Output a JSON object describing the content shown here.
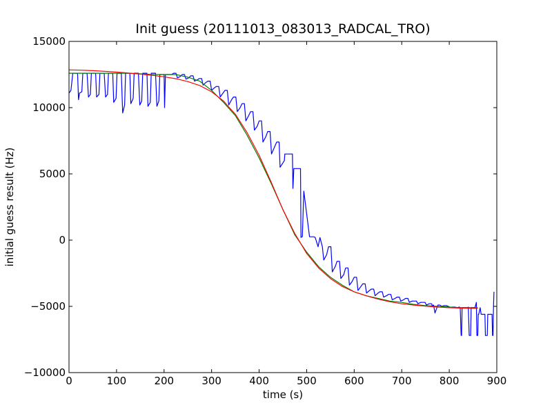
{
  "chart_data": {
    "type": "line",
    "title": "Init guess (20111013_083013_RADCAL_TRO)",
    "xlabel": "time (s)",
    "ylabel": "initial guess result (Hz)",
    "xlim": [
      0,
      900
    ],
    "ylim": [
      -10000,
      15000
    ],
    "xticks": [
      0,
      100,
      200,
      300,
      400,
      500,
      600,
      700,
      800,
      900
    ],
    "yticks": [
      -10000,
      -5000,
      0,
      5000,
      10000,
      15000
    ],
    "xtick_labels": [
      "0",
      "100",
      "200",
      "300",
      "400",
      "500",
      "600",
      "700",
      "800",
      "900"
    ],
    "ytick_labels": [
      "−10000",
      "−5000",
      "0",
      "5000",
      "10000",
      "15000"
    ],
    "grid": false,
    "legend": "none",
    "series": [
      {
        "color": "#0000ff",
        "x": [
          0,
          4,
          8,
          9,
          18,
          20,
          22,
          27,
          29,
          36,
          38,
          41,
          45,
          47,
          54,
          56,
          58,
          63,
          65,
          72,
          74,
          77,
          81,
          83,
          90,
          92,
          94,
          99,
          101,
          108,
          110,
          113,
          117,
          119,
          126,
          128,
          130,
          135,
          137,
          144,
          146,
          149,
          153,
          155,
          162,
          164,
          166,
          171,
          173,
          180,
          182,
          185,
          189,
          191,
          198,
          200,
          201,
          203,
          205,
          207,
          216,
          220,
          225,
          228,
          234,
          238,
          243,
          246,
          252,
          256,
          261,
          264,
          270,
          274,
          279,
          282,
          288,
          292,
          297,
          300,
          306,
          310,
          315,
          318,
          324,
          328,
          333,
          336,
          342,
          346,
          351,
          354,
          360,
          364,
          369,
          372,
          378,
          382,
          387,
          390,
          396,
          400,
          405,
          408,
          414,
          418,
          423,
          426,
          432,
          437,
          442,
          444,
          453,
          454,
          470,
          471,
          472,
          473,
          487,
          488,
          489,
          491,
          494,
          506,
          510,
          515,
          518,
          524,
          528,
          533,
          536,
          542,
          546,
          551,
          554,
          560,
          564,
          569,
          572,
          578,
          582,
          587,
          590,
          596,
          600,
          605,
          608,
          614,
          618,
          623,
          626,
          632,
          636,
          641,
          644,
          650,
          654,
          659,
          662,
          668,
          672,
          677,
          680,
          686,
          690,
          695,
          698,
          704,
          708,
          713,
          716,
          722,
          726,
          731,
          734,
          740,
          744,
          749,
          752,
          758,
          762,
          763,
          764,
          767,
          770,
          776,
          780,
          785,
          788,
          794,
          798,
          803,
          806,
          812,
          816,
          819,
          820,
          821,
          823,
          825,
          826,
          827,
          838,
          839,
          840,
          842,
          844,
          845,
          846,
          849,
          854,
          857,
          858,
          860,
          861,
          862,
          865,
          867,
          868,
          875,
          876,
          880,
          881,
          882,
          889,
          890,
          891,
          892,
          893,
          894
        ],
        "y": [
          11100,
          11300,
          12600,
          12600,
          12600,
          10600,
          11100,
          11200,
          12600,
          12600,
          12600,
          10800,
          11000,
          12600,
          12600,
          12600,
          10800,
          11000,
          12600,
          12600,
          12600,
          10800,
          11000,
          12600,
          12600,
          12600,
          10400,
          10700,
          12600,
          12600,
          12600,
          9600,
          10200,
          12600,
          12600,
          12600,
          10300,
          10700,
          12600,
          12600,
          12600,
          10200,
          10500,
          12600,
          12600,
          12600,
          10100,
          10400,
          12600,
          12600,
          12600,
          10100,
          10500,
          12500,
          12500,
          12500,
          10000,
          12500,
          12500,
          12500,
          12500,
          12600,
          12600,
          12250,
          12350,
          12500,
          12500,
          12150,
          12250,
          12400,
          12400,
          12000,
          12100,
          12200,
          12200,
          11700,
          11900,
          12000,
          12000,
          11300,
          11500,
          11600,
          11600,
          10800,
          11100,
          11300,
          11300,
          10200,
          10600,
          10800,
          10800,
          9700,
          10000,
          10300,
          10300,
          9000,
          9400,
          9700,
          9700,
          8300,
          8600,
          9000,
          9000,
          7400,
          7800,
          8200,
          8200,
          6500,
          7000,
          7400,
          7400,
          5500,
          6000,
          6500,
          6500,
          3900,
          4600,
          5400,
          5400,
          200,
          250,
          250,
          3700,
          250,
          250,
          250,
          200,
          -500,
          200,
          -500,
          -1500,
          -1100,
          -500,
          -500,
          -2400,
          -2000,
          -1600,
          -1600,
          -2900,
          -2600,
          -2100,
          -2100,
          -3400,
          -3100,
          -2800,
          -2800,
          -3800,
          -3500,
          -3300,
          -3300,
          -4000,
          -3800,
          -3700,
          -3700,
          -4200,
          -4000,
          -3900,
          -3900,
          -4300,
          -4200,
          -4100,
          -4100,
          -4500,
          -4400,
          -4300,
          -4300,
          -4600,
          -4500,
          -4400,
          -4400,
          -4700,
          -4600,
          -4600,
          -4600,
          -4800,
          -4700,
          -4700,
          -4700,
          -4900,
          -4800,
          -4800,
          -4800,
          -4950,
          -4900,
          -5500,
          -4900,
          -4900,
          -5000,
          -4950,
          -4950,
          -5000,
          -5100,
          -5050,
          -5050,
          -5100,
          -5100,
          -5050,
          -5050,
          -5100,
          -7200,
          -7200,
          -5100,
          -5100,
          -5100,
          -5050,
          -7200,
          -7200,
          -7200,
          -5100,
          -5100,
          -5100,
          -4700,
          -7200,
          -7200,
          -5600,
          -5600,
          -5100,
          -5600,
          -5600,
          -5600,
          -7200,
          -7200,
          -5600,
          -5600,
          -5600,
          -5600,
          -7200,
          -7200,
          -5100,
          -3900
        ]
      },
      {
        "color": "#008000",
        "x": [
          0,
          25,
          50,
          75,
          100,
          125,
          150,
          175,
          200,
          225,
          250,
          275,
          300,
          325,
          350,
          375,
          400,
          425,
          450,
          475,
          500,
          525,
          550,
          575,
          600,
          625,
          650,
          675,
          700,
          725,
          750,
          775,
          800,
          825,
          850,
          860
        ],
        "y": [
          12600,
          12600,
          12600,
          12600,
          12600,
          12600,
          12550,
          12500,
          12500,
          12500,
          12300,
          12000,
          11300,
          10400,
          9400,
          7900,
          6200,
          4300,
          2300,
          400,
          -900,
          -2000,
          -2800,
          -3400,
          -3900,
          -4200,
          -4400,
          -4600,
          -4700,
          -4850,
          -4950,
          -5000,
          -5050,
          -5100,
          -5100,
          -5100
        ]
      },
      {
        "color": "#ff0000",
        "x": [
          0,
          25,
          50,
          75,
          100,
          125,
          150,
          175,
          200,
          225,
          250,
          275,
          300,
          325,
          350,
          375,
          400,
          425,
          450,
          475,
          500,
          525,
          550,
          575,
          600,
          625,
          650,
          675,
          700,
          725,
          750,
          775,
          800,
          825,
          850,
          860
        ],
        "y": [
          12850,
          12830,
          12790,
          12740,
          12680,
          12610,
          12530,
          12440,
          12330,
          12180,
          11970,
          11670,
          11200,
          10500,
          9500,
          8100,
          6400,
          4400,
          2300,
          500,
          -1000,
          -2100,
          -2900,
          -3500,
          -3900,
          -4200,
          -4450,
          -4650,
          -4800,
          -4900,
          -4980,
          -5050,
          -5100,
          -5130,
          -5150,
          -5150
        ]
      }
    ]
  }
}
